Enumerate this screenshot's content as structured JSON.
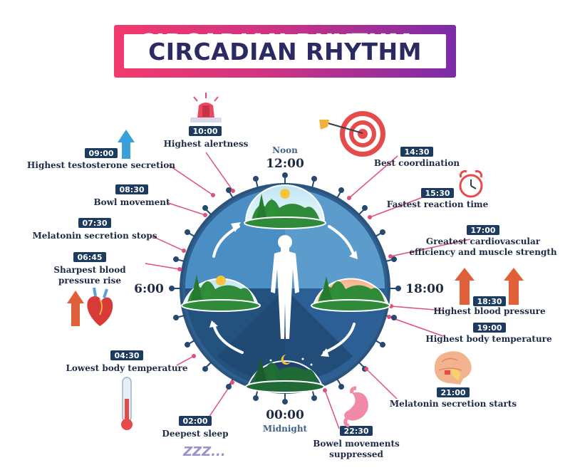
{
  "title": "CIRCADIAN RHYTHM",
  "cardinal": {
    "noon_word": "Noon",
    "noon_time": "12:00",
    "midnight_time": "00:00",
    "midnight_word": "Midnight",
    "six_am": "6:00",
    "six_pm": "18:00"
  },
  "events": [
    {
      "time": "10:00",
      "label": "Highest alertness"
    },
    {
      "time": "09:00",
      "label": "Highest testosterone secretion"
    },
    {
      "time": "08:30",
      "label": "Bowl movement"
    },
    {
      "time": "07:30",
      "label": "Melatonin secretion stops"
    },
    {
      "time": "06:45",
      "label_line1": "Sharpest blood",
      "label_line2": "pressure rise"
    },
    {
      "time": "04:30",
      "label": "Lowest body temperature"
    },
    {
      "time": "02:00",
      "label": "Deepest sleep"
    },
    {
      "time": "22:30",
      "label_line1": "Bowel movements",
      "label_line2": "suppressed"
    },
    {
      "time": "21:00",
      "label": "Melatonin secretion starts"
    },
    {
      "time": "19:00",
      "label": "Highest body temperature"
    },
    {
      "time": "18:30",
      "label": "Highest blood pressure"
    },
    {
      "time": "17:00",
      "label_line1": "Greatest cardiovascular",
      "label_line2": "efficiency and muscle strength"
    },
    {
      "time": "15:30",
      "label": "Fastest reaction time"
    },
    {
      "time": "14:30",
      "label": "Best coordination"
    }
  ],
  "sleep_text": "ZZZ...",
  "colors": {
    "badge": "#1d3a5f",
    "ring": "#2f5f8f",
    "pointer": "#e04f7a",
    "title_grad_start": "#f23a6c",
    "title_grad_end": "#7b2ba8"
  }
}
